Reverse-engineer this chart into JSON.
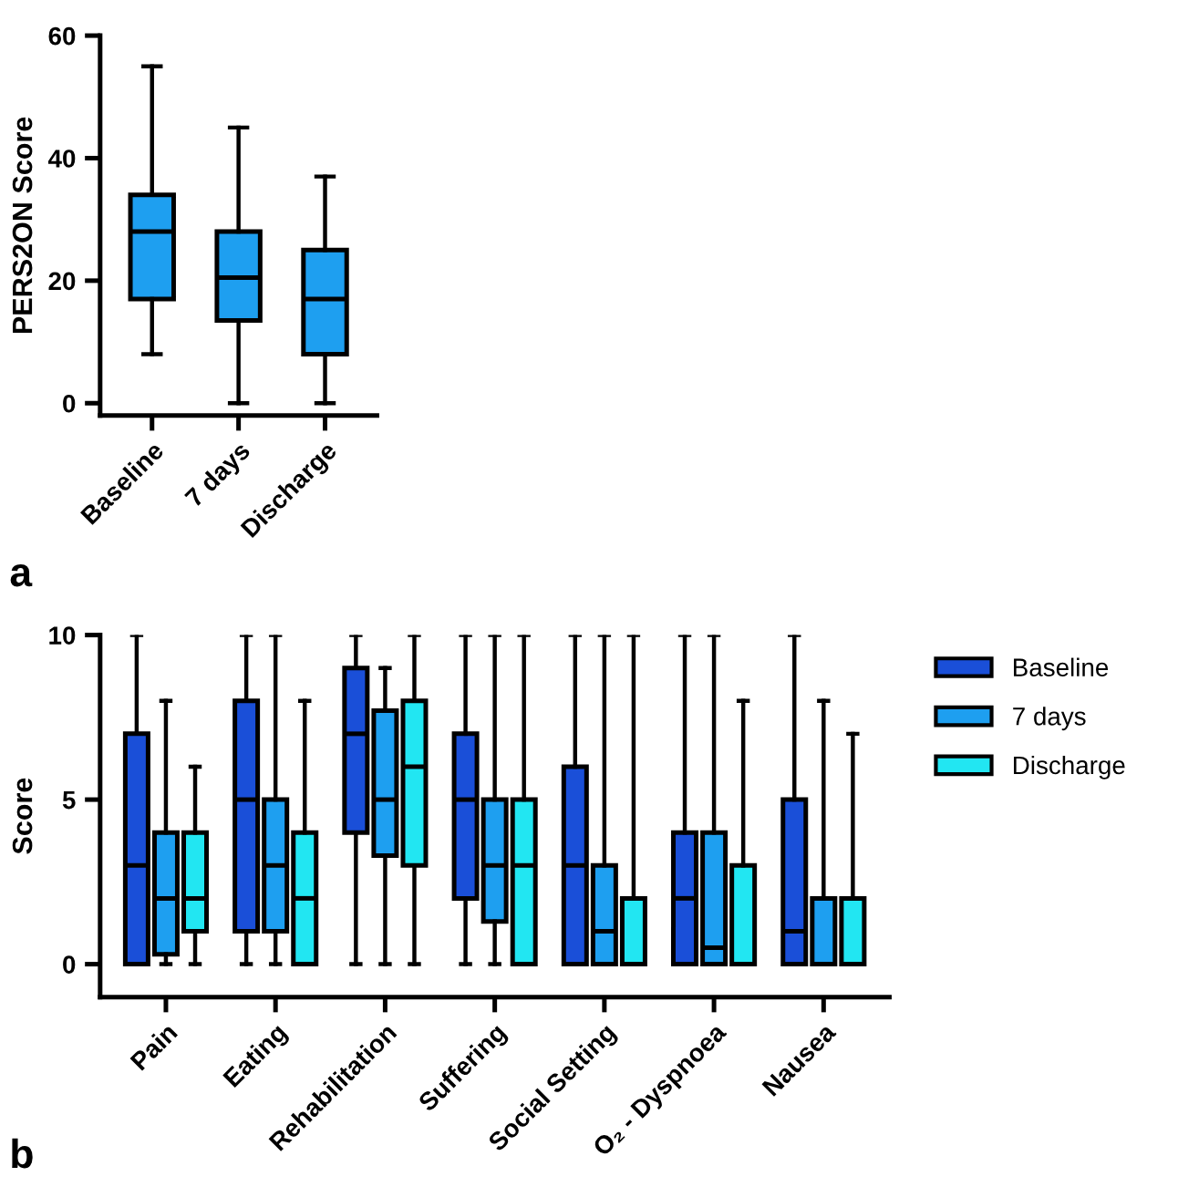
{
  "chart_data": [
    {
      "type": "box",
      "ylabel": "PERS2ON Score",
      "categories": [
        "Baseline",
        "7 days",
        "Discharge"
      ],
      "color": "#1e9ff0",
      "ylim": [
        -2,
        60
      ],
      "yticks": [
        0,
        20,
        40,
        60
      ],
      "grid": false,
      "legend": false,
      "annotations": [
        "a"
      ],
      "boxes": [
        {
          "low": 8,
          "q1": 17,
          "median": 28,
          "q3": 34,
          "high": 55
        },
        {
          "low": 0,
          "q1": 13.5,
          "median": 20.5,
          "q3": 28,
          "high": 45
        },
        {
          "low": 0,
          "q1": 8,
          "median": 17,
          "q3": 25,
          "high": 37
        }
      ]
    },
    {
      "type": "box",
      "ylabel": "Score",
      "categories": [
        "Pain",
        "Eating",
        "Rehabilitation",
        "Suffering",
        "Social Setting",
        "O₂ - Dyspnoea",
        "Nausea"
      ],
      "ylim": [
        -1,
        10
      ],
      "yticks": [
        0,
        5,
        10
      ],
      "grid": false,
      "legend": "top right",
      "annotations": [
        "b"
      ],
      "series": [
        {
          "name": "Baseline",
          "color": "#1a4fd8",
          "boxes": [
            {
              "low": 0,
              "q1": 0,
              "median": 3,
              "q3": 7,
              "high": 10
            },
            {
              "low": 0,
              "q1": 1,
              "median": 5,
              "q3": 8,
              "high": 10
            },
            {
              "low": 0,
              "q1": 4,
              "median": 7,
              "q3": 9,
              "high": 10
            },
            {
              "low": 0,
              "q1": 2,
              "median": 5,
              "q3": 7,
              "high": 10
            },
            {
              "low": 0,
              "q1": 0,
              "median": 3,
              "q3": 6,
              "high": 10
            },
            {
              "low": 0,
              "q1": 0,
              "median": 2,
              "q3": 4,
              "high": 10
            },
            {
              "low": 0,
              "q1": 0,
              "median": 1,
              "q3": 5,
              "high": 10
            }
          ]
        },
        {
          "name": "7 days",
          "color": "#1e9ff0",
          "boxes": [
            {
              "low": 0,
              "q1": 0.3,
              "median": 2,
              "q3": 4,
              "high": 8
            },
            {
              "low": 0,
              "q1": 1,
              "median": 3,
              "q3": 5,
              "high": 10
            },
            {
              "low": 0,
              "q1": 3.3,
              "median": 5,
              "q3": 7.7,
              "high": 9
            },
            {
              "low": 0,
              "q1": 1.3,
              "median": 3,
              "q3": 5,
              "high": 10
            },
            {
              "low": 0,
              "q1": 0,
              "median": 1,
              "q3": 3,
              "high": 10
            },
            {
              "low": 0,
              "q1": 0,
              "median": 0.5,
              "q3": 4,
              "high": 10
            },
            {
              "low": 0,
              "q1": 0,
              "median": 0,
              "q3": 2,
              "high": 8
            }
          ]
        },
        {
          "name": "Discharge",
          "color": "#22e6f2",
          "boxes": [
            {
              "low": 0,
              "q1": 1,
              "median": 2,
              "q3": 4,
              "high": 6
            },
            {
              "low": 0,
              "q1": 0,
              "median": 2,
              "q3": 4,
              "high": 8
            },
            {
              "low": 0,
              "q1": 3,
              "median": 6,
              "q3": 8,
              "high": 10
            },
            {
              "low": 0,
              "q1": 0,
              "median": 3,
              "q3": 5,
              "high": 10
            },
            {
              "low": 0,
              "q1": 0,
              "median": 0,
              "q3": 2,
              "high": 10
            },
            {
              "low": 0,
              "q1": 0,
              "median": 0,
              "q3": 3,
              "high": 8
            },
            {
              "low": 0,
              "q1": 0,
              "median": 0,
              "q3": 2,
              "high": 7
            }
          ]
        }
      ]
    }
  ]
}
